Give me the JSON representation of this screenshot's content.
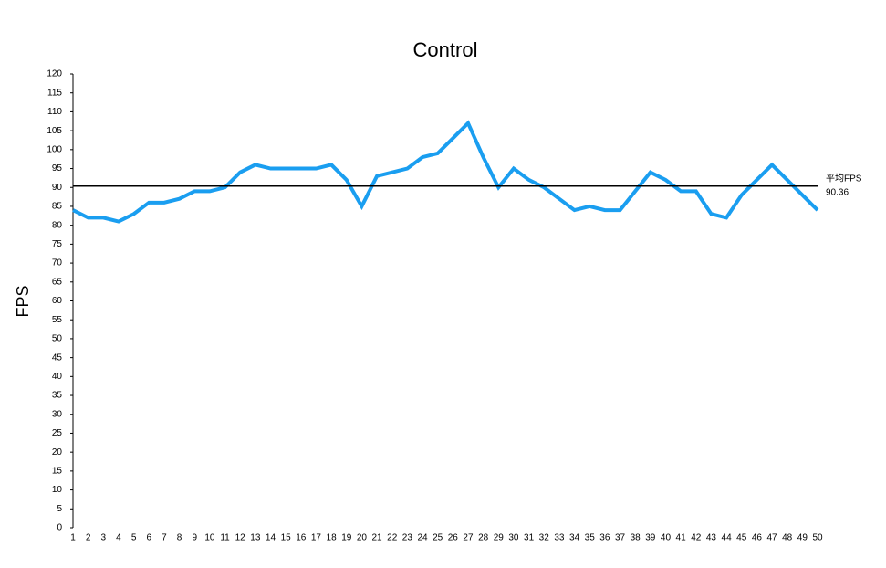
{
  "chart_data": {
    "type": "line",
    "title": "Control",
    "y_label": "FPS",
    "x": [
      1,
      2,
      3,
      4,
      5,
      6,
      7,
      8,
      9,
      10,
      11,
      12,
      13,
      14,
      15,
      16,
      17,
      18,
      19,
      20,
      21,
      22,
      23,
      24,
      25,
      26,
      27,
      28,
      29,
      30,
      31,
      32,
      33,
      34,
      35,
      36,
      37,
      38,
      39,
      40,
      41,
      42,
      43,
      44,
      45,
      46,
      47,
      48,
      49,
      50
    ],
    "xlim": [
      1,
      50
    ],
    "xticks": [
      1,
      2,
      3,
      4,
      5,
      6,
      7,
      8,
      9,
      10,
      11,
      12,
      13,
      14,
      15,
      16,
      17,
      18,
      19,
      20,
      21,
      22,
      23,
      24,
      25,
      26,
      27,
      28,
      29,
      30,
      31,
      32,
      33,
      34,
      35,
      36,
      37,
      38,
      39,
      40,
      41,
      42,
      43,
      44,
      45,
      46,
      47,
      48,
      49,
      50
    ],
    "series": [
      {
        "color": "#1a9ef0",
        "values": [
          84,
          82,
          82,
          81,
          83,
          86,
          86,
          87,
          89,
          89,
          90,
          94,
          96,
          95,
          95,
          95,
          95,
          96,
          92,
          85,
          93,
          94,
          95,
          98,
          99,
          103,
          107,
          98,
          90,
          95,
          92,
          90,
          87,
          84,
          85,
          84,
          84,
          89,
          94,
          92,
          89,
          89,
          83,
          82,
          88,
          92,
          96,
          92,
          88,
          84
        ]
      }
    ],
    "ylim": [
      0,
      120
    ],
    "yticks": [
      0,
      5,
      10,
      15,
      20,
      25,
      30,
      35,
      40,
      45,
      50,
      55,
      60,
      65,
      70,
      75,
      80,
      85,
      90,
      95,
      100,
      105,
      110,
      115,
      120
    ],
    "average": {
      "label": "平均FPS",
      "value": 90.36,
      "color": "#000000"
    }
  }
}
